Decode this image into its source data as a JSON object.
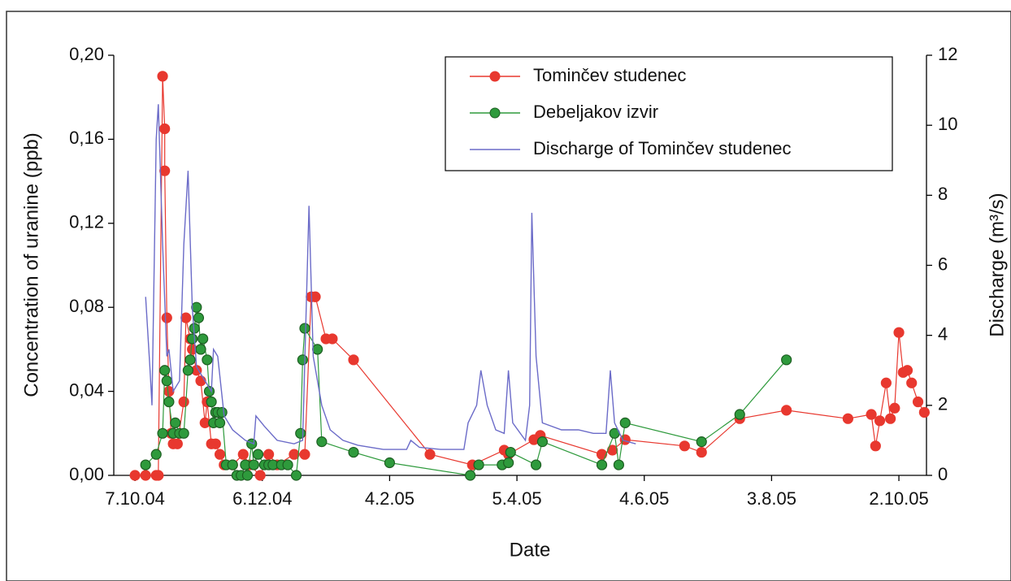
{
  "chart_data": {
    "type": "line",
    "xlabel": "Date",
    "ylabel": "Concentration of uranine (ppb)",
    "y2label": "Discharge (m³/s)",
    "xlim": [
      "2004-09-27",
      "2005-10-15"
    ],
    "xticks": [
      {
        "value": "2004-10-07",
        "label": "7.10.04"
      },
      {
        "value": "2004-12-06",
        "label": "6.12.04"
      },
      {
        "value": "2005-02-04",
        "label": "4.2.05"
      },
      {
        "value": "2005-04-05",
        "label": "5.4.05"
      },
      {
        "value": "2005-06-04",
        "label": "4.6.05"
      },
      {
        "value": "2005-08-03",
        "label": "3.8.05"
      },
      {
        "value": "2005-10-02",
        "label": "2.10.05"
      }
    ],
    "ylim": [
      0,
      0.2
    ],
    "yticks": [
      {
        "value": 0,
        "label": "0,00"
      },
      {
        "value": 0.04,
        "label": "0,04"
      },
      {
        "value": 0.08,
        "label": "0,08"
      },
      {
        "value": 0.12,
        "label": "0,12"
      },
      {
        "value": 0.16,
        "label": "0,16"
      },
      {
        "value": 0.2,
        "label": "0,20"
      }
    ],
    "y2lim": [
      0,
      12
    ],
    "y2ticks": [
      0,
      2,
      4,
      6,
      8,
      10,
      12
    ],
    "legend": "top-right",
    "series": [
      {
        "name": "Tominčev studenec",
        "color": "#e8382f",
        "markers": true,
        "x": [
          "2004-10-07",
          "2004-10-12",
          "2004-10-17",
          "2004-10-18",
          "2004-10-20",
          "2004-10-21",
          "2004-10-21",
          "2004-10-22",
          "2004-10-23",
          "2004-10-24",
          "2004-10-25",
          "2004-10-27",
          "2004-10-30",
          "2004-10-31",
          "2004-11-02",
          "2004-11-03",
          "2004-11-05",
          "2004-11-07",
          "2004-11-09",
          "2004-11-10",
          "2004-11-12",
          "2004-11-14",
          "2004-11-16",
          "2004-11-18",
          "2004-11-22",
          "2004-11-27",
          "2004-11-30",
          "2004-12-05",
          "2004-12-09",
          "2004-12-13",
          "2004-12-21",
          "2004-12-26",
          "2004-12-29",
          "2004-12-31",
          "2005-01-05",
          "2005-01-08",
          "2005-01-18",
          "2005-02-23",
          "2005-03-15",
          "2005-03-30",
          "2005-04-01",
          "2005-04-13",
          "2005-04-16",
          "2005-05-15",
          "2005-05-20",
          "2005-05-26",
          "2005-06-23",
          "2005-07-01",
          "2005-07-19",
          "2005-08-10",
          "2005-09-08",
          "2005-09-19",
          "2005-09-21",
          "2005-09-23",
          "2005-09-26",
          "2005-09-28",
          "2005-09-30",
          "2005-10-02",
          "2005-10-04",
          "2005-10-06",
          "2005-10-08",
          "2005-10-11",
          "2005-10-14"
        ],
        "values": [
          0,
          0,
          0,
          0,
          0.19,
          0.165,
          0.145,
          0.075,
          0.04,
          0.02,
          0.015,
          0.015,
          0.035,
          0.075,
          0.065,
          0.06,
          0.05,
          0.045,
          0.025,
          0.035,
          0.015,
          0.015,
          0.01,
          0.005,
          0.005,
          0.01,
          0.005,
          0,
          0.01,
          0.005,
          0.01,
          0.01,
          0.085,
          0.085,
          0.065,
          0.065,
          0.055,
          0.01,
          0.005,
          0.012,
          0.01,
          0.017,
          0.019,
          0.01,
          0.012,
          0.017,
          0.014,
          0.011,
          0.027,
          0.031,
          0.027,
          0.029,
          0.014,
          0.026,
          0.044,
          0.027,
          0.032,
          0.068,
          0.049,
          0.05,
          0.044,
          0.035,
          0.03
        ]
      },
      {
        "name": "Debeljakov izvir",
        "color": "#2e9a3c",
        "markers": true,
        "x": [
          "2004-10-12",
          "2004-10-17",
          "2004-10-20",
          "2004-10-21",
          "2004-10-22",
          "2004-10-23",
          "2004-10-25",
          "2004-10-26",
          "2004-10-28",
          "2004-10-30",
          "2004-11-01",
          "2004-11-02",
          "2004-11-03",
          "2004-11-04",
          "2004-11-05",
          "2004-11-06",
          "2004-11-07",
          "2004-11-08",
          "2004-11-10",
          "2004-11-11",
          "2004-11-12",
          "2004-11-13",
          "2004-11-14",
          "2004-11-15",
          "2004-11-16",
          "2004-11-17",
          "2004-11-19",
          "2004-11-22",
          "2004-11-24",
          "2004-11-26",
          "2004-11-28",
          "2004-11-29",
          "2004-12-01",
          "2004-12-02",
          "2004-12-04",
          "2004-12-07",
          "2004-12-09",
          "2004-12-11",
          "2004-12-15",
          "2004-12-18",
          "2004-12-22",
          "2004-12-24",
          "2004-12-25",
          "2004-12-26",
          "2005-01-01",
          "2005-01-03",
          "2005-01-18",
          "2005-02-04",
          "2005-03-14",
          "2005-03-18",
          "2005-03-29",
          "2005-04-01",
          "2005-04-02",
          "2005-04-14",
          "2005-04-17",
          "2005-05-15",
          "2005-05-21",
          "2005-05-23",
          "2005-05-26",
          "2005-07-01",
          "2005-07-19",
          "2005-08-10"
        ],
        "values": [
          0.005,
          0.01,
          0.02,
          0.05,
          0.045,
          0.035,
          0.02,
          0.025,
          0.02,
          0.02,
          0.05,
          0.055,
          0.065,
          0.07,
          0.08,
          0.075,
          0.06,
          0.065,
          0.055,
          0.04,
          0.035,
          0.025,
          0.03,
          0.03,
          0.025,
          0.03,
          0.005,
          0.005,
          0,
          0,
          0.005,
          0,
          0.015,
          0.005,
          0.01,
          0.005,
          0.005,
          0.005,
          0.005,
          0.005,
          0,
          0.02,
          0.055,
          0.07,
          0.06,
          0.016,
          0.011,
          0.006,
          0,
          0.005,
          0.005,
          0.006,
          0.011,
          0.005,
          0.016,
          0.005,
          0.02,
          0.005,
          0.025,
          0.016,
          0.029,
          0.055
        ]
      },
      {
        "name": "Discharge of Tominčev studenec",
        "color": "#6b6bc8",
        "markers": false,
        "axis": "y2",
        "x": [
          "2004-10-12",
          "2004-10-14",
          "2004-10-15",
          "2004-10-17",
          "2004-10-18",
          "2004-10-20",
          "2004-10-22",
          "2004-10-23",
          "2004-10-25",
          "2004-10-28",
          "2004-10-30",
          "2004-11-01",
          "2004-11-03",
          "2004-11-05",
          "2004-11-09",
          "2004-11-12",
          "2004-11-13",
          "2004-11-15",
          "2004-11-18",
          "2004-11-22",
          "2004-11-28",
          "2004-12-02",
          "2004-12-03",
          "2004-12-07",
          "2004-12-13",
          "2004-12-21",
          "2004-12-25",
          "2004-12-28",
          "2004-12-30",
          "2005-01-03",
          "2005-01-07",
          "2005-01-13",
          "2005-01-20",
          "2005-02-01",
          "2005-02-12",
          "2005-02-14",
          "2005-02-18",
          "2005-02-28",
          "2005-03-11",
          "2005-03-13",
          "2005-03-17",
          "2005-03-19",
          "2005-03-22",
          "2005-03-26",
          "2005-03-30",
          "2005-04-01",
          "2005-04-03",
          "2005-04-09",
          "2005-04-11",
          "2005-04-12",
          "2005-04-14",
          "2005-04-17",
          "2005-04-26",
          "2005-05-04",
          "2005-05-11",
          "2005-05-17",
          "2005-05-19",
          "2005-05-21",
          "2005-05-25",
          "2005-05-31"
        ],
        "values": [
          5.1,
          3.1,
          2.0,
          9.6,
          10.6,
          6.6,
          3.4,
          3.6,
          2.4,
          2.7,
          6.6,
          8.7,
          4.8,
          3.1,
          2.7,
          2.4,
          3.6,
          3.4,
          1.7,
          1.3,
          1.0,
          0.9,
          1.7,
          1.4,
          1.0,
          0.9,
          1.0,
          7.7,
          3.4,
          2.0,
          1.3,
          1.0,
          0.86,
          0.74,
          0.74,
          1.0,
          0.8,
          0.74,
          0.74,
          1.5,
          2.0,
          3.0,
          2.0,
          1.3,
          1.2,
          3.0,
          1.5,
          1.0,
          2.0,
          7.5,
          3.4,
          1.5,
          1.3,
          1.3,
          1.2,
          1.2,
          3.0,
          1.5,
          1.0,
          0.9
        ]
      }
    ]
  }
}
